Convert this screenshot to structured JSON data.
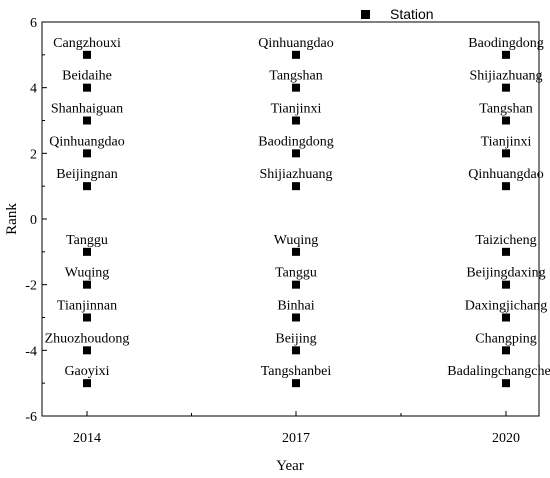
{
  "chart_data": {
    "type": "scatter",
    "xlabel": "Year",
    "ylabel": "Rank",
    "x_ticks": [
      "2014",
      "2017",
      "2020"
    ],
    "y_ticks": [
      -6,
      -4,
      -2,
      0,
      2,
      4,
      6
    ],
    "ylim": [
      -6,
      6
    ],
    "grid": false,
    "legend_position": "top-right",
    "series": [
      {
        "name": "Station",
        "color": "#000000",
        "marker": "square",
        "points": [
          {
            "x": "2014",
            "y": 5,
            "label": "Cangzhouxi"
          },
          {
            "x": "2014",
            "y": 4,
            "label": "Beidaihe"
          },
          {
            "x": "2014",
            "y": 3,
            "label": "Shanhaiguan"
          },
          {
            "x": "2014",
            "y": 2,
            "label": "Qinhuangdao"
          },
          {
            "x": "2014",
            "y": 1,
            "label": "Beijingnan"
          },
          {
            "x": "2014",
            "y": -1,
            "label": "Tanggu"
          },
          {
            "x": "2014",
            "y": -2,
            "label": "Wuqing"
          },
          {
            "x": "2014",
            "y": -3,
            "label": "Tianjinnan"
          },
          {
            "x": "2014",
            "y": -4,
            "label": "Zhuozhoudong"
          },
          {
            "x": "2014",
            "y": -5,
            "label": "Gaoyixi"
          },
          {
            "x": "2017",
            "y": 5,
            "label": "Qinhuangdao"
          },
          {
            "x": "2017",
            "y": 4,
            "label": "Tangshan"
          },
          {
            "x": "2017",
            "y": 3,
            "label": "Tianjinxi"
          },
          {
            "x": "2017",
            "y": 2,
            "label": "Baodingdong"
          },
          {
            "x": "2017",
            "y": 1,
            "label": "Shijiazhuang"
          },
          {
            "x": "2017",
            "y": -1,
            "label": "Wuqing"
          },
          {
            "x": "2017",
            "y": -2,
            "label": "Tanggu"
          },
          {
            "x": "2017",
            "y": -3,
            "label": "Binhai"
          },
          {
            "x": "2017",
            "y": -4,
            "label": "Beijing"
          },
          {
            "x": "2017",
            "y": -5,
            "label": "Tangshanbei"
          },
          {
            "x": "2020",
            "y": 5,
            "label": "Baodingdong"
          },
          {
            "x": "2020",
            "y": 4,
            "label": "Shijiazhuang"
          },
          {
            "x": "2020",
            "y": 3,
            "label": "Tangshan"
          },
          {
            "x": "2020",
            "y": 2,
            "label": "Tianjinxi"
          },
          {
            "x": "2020",
            "y": 1,
            "label": "Qinhuangdao"
          },
          {
            "x": "2020",
            "y": -1,
            "label": "Taizicheng"
          },
          {
            "x": "2020",
            "y": -2,
            "label": "Beijingdaxing"
          },
          {
            "x": "2020",
            "y": -3,
            "label": "Daxingjichang"
          },
          {
            "x": "2020",
            "y": -4,
            "label": "Changping"
          },
          {
            "x": "2020",
            "y": -5,
            "label": "Badalingchangcheng"
          }
        ]
      }
    ]
  }
}
